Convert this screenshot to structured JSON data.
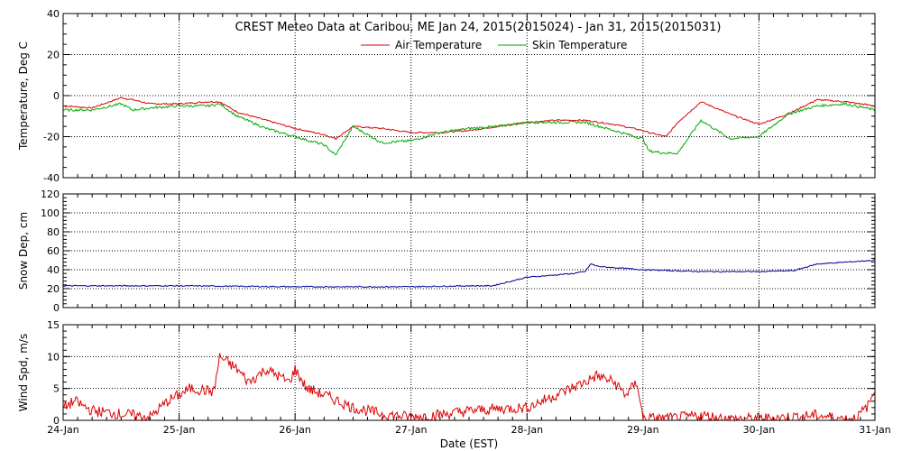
{
  "title": "CREST Meteo Data at Caribou, ME   Jan 24, 2015(2015024) - Jan 31, 2015(2015031)",
  "xlabel": "Date (EST)",
  "x_ticks": [
    "24-Jan",
    "25-Jan",
    "26-Jan",
    "27-Jan",
    "28-Jan",
    "29-Jan",
    "30-Jan",
    "31-Jan"
  ],
  "colors": {
    "air": "#dd0000",
    "skin": "#00aa00",
    "snow": "#000099",
    "wind": "#dd0000"
  },
  "chart_data": [
    {
      "type": "line",
      "ylabel": "Temperature, Deg C",
      "ylim": [
        -40,
        40
      ],
      "y_ticks": [
        -40,
        -20,
        0,
        20,
        40
      ],
      "xlim_days": [
        "24-Jan",
        "31-Jan"
      ],
      "grid": true,
      "legend": "top-center",
      "series": [
        {
          "name": "Air Temperature",
          "x_days": [
            0,
            0.25,
            0.5,
            0.6,
            0.75,
            1.0,
            1.25,
            1.35,
            1.5,
            1.75,
            2.0,
            2.25,
            2.35,
            2.5,
            2.75,
            3.0,
            3.25,
            3.5,
            3.75,
            4.0,
            4.25,
            4.5,
            4.75,
            5.0,
            5.05,
            5.2,
            5.3,
            5.5,
            5.75,
            6.0,
            6.25,
            6.5,
            6.75,
            7.0
          ],
          "values": [
            -5,
            -6,
            -1,
            -2,
            -4,
            -4,
            -3,
            -3,
            -8,
            -12,
            -16,
            -19,
            -21,
            -15,
            -16,
            -18,
            -18,
            -17,
            -15,
            -13,
            -12,
            -12,
            -14,
            -17,
            -18,
            -20,
            -13,
            -3,
            -9,
            -14,
            -9,
            -2,
            -3,
            -5
          ]
        },
        {
          "name": "Skin Temperature",
          "x_days": [
            0,
            0.25,
            0.5,
            0.6,
            0.75,
            1.0,
            1.25,
            1.35,
            1.5,
            1.75,
            2.0,
            2.25,
            2.35,
            2.5,
            2.75,
            3.0,
            3.25,
            3.5,
            3.75,
            4.0,
            4.25,
            4.5,
            4.75,
            5.0,
            5.05,
            5.2,
            5.3,
            5.5,
            5.75,
            6.0,
            6.25,
            6.5,
            6.75,
            7.0
          ],
          "values": [
            -7,
            -7,
            -4,
            -7,
            -6,
            -5,
            -5,
            -4,
            -10,
            -16,
            -20,
            -24,
            -29,
            -15,
            -23,
            -22,
            -18,
            -16,
            -15,
            -13,
            -13,
            -13,
            -17,
            -21,
            -27,
            -28,
            -28,
            -12,
            -21,
            -20,
            -9,
            -5,
            -4,
            -7
          ]
        }
      ]
    },
    {
      "type": "line",
      "ylabel": "Snow Dep, cm",
      "ylim": [
        0,
        120
      ],
      "y_ticks": [
        0,
        20,
        40,
        60,
        80,
        100,
        120
      ],
      "xlim_days": [
        "24-Jan",
        "31-Jan"
      ],
      "grid": true,
      "series": [
        {
          "x_days": [
            0,
            1.0,
            2.0,
            2.5,
            3.0,
            3.5,
            3.7,
            4.0,
            4.3,
            4.4,
            4.5,
            4.55,
            4.6,
            4.65,
            5.0,
            5.5,
            6.0,
            6.3,
            6.5,
            6.75,
            7.0
          ],
          "values": [
            23,
            23,
            22,
            22,
            22,
            23,
            23,
            32,
            35,
            36,
            38,
            46,
            44,
            43,
            40,
            38,
            38,
            39,
            46,
            48,
            50
          ]
        }
      ]
    },
    {
      "type": "line",
      "ylabel": "Wind Spd, m/s",
      "ylim": [
        0,
        15
      ],
      "y_ticks": [
        0,
        5,
        10,
        15
      ],
      "xlim_days": [
        "24-Jan",
        "31-Jan"
      ],
      "grid": true,
      "series": [
        {
          "x_days": [
            0,
            0.1,
            0.25,
            0.5,
            0.75,
            0.9,
            1.1,
            1.3,
            1.35,
            1.5,
            1.6,
            1.75,
            1.95,
            2.0,
            2.1,
            2.25,
            2.5,
            2.75,
            3.0,
            3.3,
            3.5,
            3.75,
            4.0,
            4.25,
            4.5,
            4.6,
            4.75,
            4.85,
            4.95,
            5.0,
            5.25,
            5.5,
            5.75,
            6.0,
            6.25,
            6.5,
            6.75,
            6.85,
            6.95,
            7.0
          ],
          "values": [
            2,
            3,
            1.5,
            1,
            0.5,
            3,
            5,
            4.5,
            10,
            8,
            6,
            8,
            6,
            8,
            5,
            4,
            2,
            1,
            0.5,
            1,
            1.5,
            1.8,
            2,
            4,
            6,
            7,
            6,
            4,
            6,
            0.3,
            0.3,
            0.8,
            0.2,
            0.3,
            0.5,
            0.8,
            0.2,
            0.5,
            2.5,
            5
          ]
        }
      ]
    }
  ]
}
